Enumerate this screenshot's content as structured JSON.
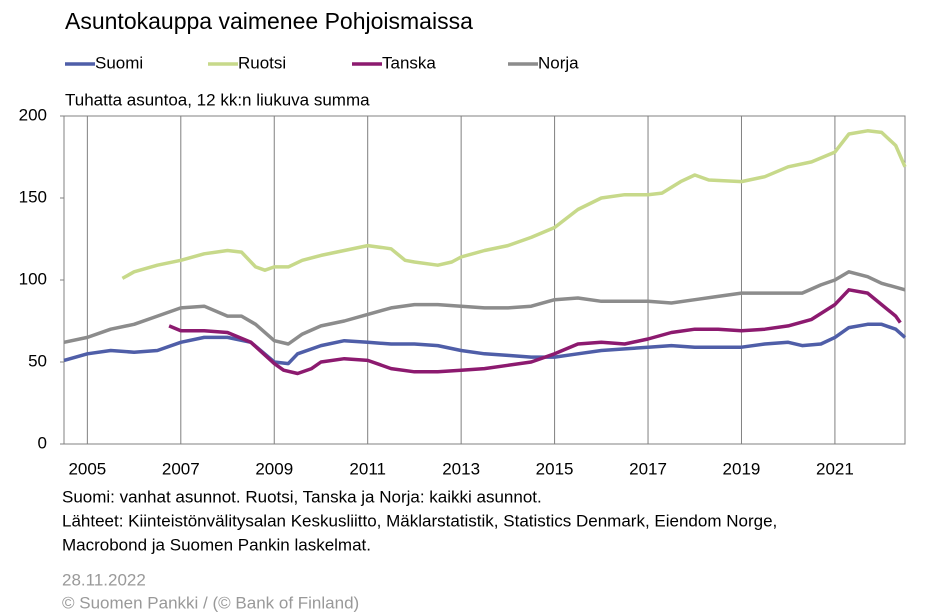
{
  "chart_data": {
    "type": "line",
    "title": "Asuntokauppa vaimenee Pohjoismaissa",
    "y_label": "Tuhatta asuntoa, 12 kk:n liukuva summa",
    "notes": [
      "Suomi: vanhat asunnot. Ruotsi, Tanska ja Norja: kaikki asunnot.",
      "Lähteet: Kiinteistönvälitysalan Keskusliitto, Mäklarstatistik, Statistics Denmark, Eiendom Norge,",
      "Macrobond ja Suomen Pankin laskelmat."
    ],
    "date": "28.11.2022",
    "copyright": "© Suomen Pankki / (© Bank of Finland)",
    "xlim": [
      2004.5,
      2022.5
    ],
    "xticks": [
      2005,
      2007,
      2009,
      2011,
      2013,
      2015,
      2017,
      2019,
      2021
    ],
    "ylim": [
      0,
      200
    ],
    "yticks": [
      0,
      50,
      100,
      150,
      200
    ],
    "grid": "x",
    "series": [
      {
        "name": "Suomi",
        "color": "#4f5ea8",
        "x": [
          2004.5,
          2005,
          2005.5,
          2006,
          2006.5,
          2007,
          2007.5,
          2008,
          2008.5,
          2009,
          2009.3,
          2009.5,
          2010,
          2010.5,
          2011,
          2011.5,
          2012,
          2012.5,
          2013,
          2013.5,
          2014,
          2014.5,
          2015,
          2015.5,
          2016,
          2016.5,
          2017,
          2017.5,
          2018,
          2018.5,
          2019,
          2019.5,
          2020,
          2020.3,
          2020.7,
          2021,
          2021.3,
          2021.7,
          2022,
          2022.3,
          2022.5
        ],
        "values": [
          51,
          55,
          57,
          56,
          57,
          62,
          65,
          65,
          62,
          50,
          49,
          55,
          60,
          63,
          62,
          61,
          61,
          60,
          57,
          55,
          54,
          53,
          53,
          55,
          57,
          58,
          59,
          60,
          59,
          59,
          59,
          61,
          62,
          60,
          61,
          65,
          71,
          73,
          73,
          70,
          65
        ]
      },
      {
        "name": "Ruotsi",
        "color": "#c7d98a",
        "x": [
          2005.75,
          2006,
          2006.5,
          2007,
          2007.5,
          2008,
          2008.3,
          2008.6,
          2008.8,
          2009,
          2009.3,
          2009.6,
          2010,
          2010.5,
          2011,
          2011.5,
          2011.8,
          2012,
          2012.5,
          2012.8,
          2013,
          2013.5,
          2014,
          2014.5,
          2015,
          2015.5,
          2016,
          2016.5,
          2017,
          2017.3,
          2017.7,
          2018,
          2018.3,
          2019,
          2019.5,
          2020,
          2020.5,
          2021,
          2021.3,
          2021.7,
          2022,
          2022.3,
          2022.5
        ],
        "values": [
          101,
          105,
          109,
          112,
          116,
          118,
          117,
          108,
          106,
          108,
          108,
          112,
          115,
          118,
          121,
          119,
          112,
          111,
          109,
          111,
          114,
          118,
          121,
          126,
          132,
          143,
          150,
          152,
          152,
          153,
          160,
          164,
          161,
          160,
          163,
          169,
          172,
          178,
          189,
          191,
          190,
          182,
          169
        ]
      },
      {
        "name": "Tanska",
        "color": "#8c1a6f",
        "x": [
          2006.75,
          2007,
          2007.5,
          2008,
          2008.5,
          2009,
          2009.2,
          2009.5,
          2009.8,
          2010,
          2010.5,
          2011,
          2011.5,
          2012,
          2012.5,
          2013,
          2013.5,
          2014,
          2014.5,
          2015,
          2015.5,
          2016,
          2016.5,
          2017,
          2017.5,
          2018,
          2018.5,
          2019,
          2019.5,
          2020,
          2020.5,
          2021,
          2021.3,
          2021.7,
          2022,
          2022.3,
          2022.4
        ],
        "values": [
          72,
          69,
          69,
          68,
          62,
          49,
          45,
          43,
          46,
          50,
          52,
          51,
          46,
          44,
          44,
          45,
          46,
          48,
          50,
          55,
          61,
          62,
          61,
          64,
          68,
          70,
          70,
          69,
          70,
          72,
          76,
          85,
          94,
          92,
          85,
          78,
          74
        ]
      },
      {
        "name": "Norja",
        "color": "#8c8c8c",
        "x": [
          2004.5,
          2005,
          2005.5,
          2006,
          2006.5,
          2007,
          2007.5,
          2008,
          2008.3,
          2008.6,
          2009,
          2009.3,
          2009.6,
          2010,
          2010.5,
          2011,
          2011.5,
          2012,
          2012.5,
          2013,
          2013.5,
          2014,
          2014.5,
          2015,
          2015.5,
          2016,
          2016.5,
          2017,
          2017.5,
          2018,
          2018.5,
          2019,
          2019.5,
          2020,
          2020.3,
          2020.7,
          2021,
          2021.3,
          2021.7,
          2022,
          2022.5
        ],
        "values": [
          62,
          65,
          70,
          73,
          78,
          83,
          84,
          78,
          78,
          73,
          63,
          61,
          67,
          72,
          75,
          79,
          83,
          85,
          85,
          84,
          83,
          83,
          84,
          88,
          89,
          87,
          87,
          87,
          86,
          88,
          90,
          92,
          92,
          92,
          92,
          97,
          100,
          105,
          102,
          98,
          94
        ]
      }
    ]
  }
}
